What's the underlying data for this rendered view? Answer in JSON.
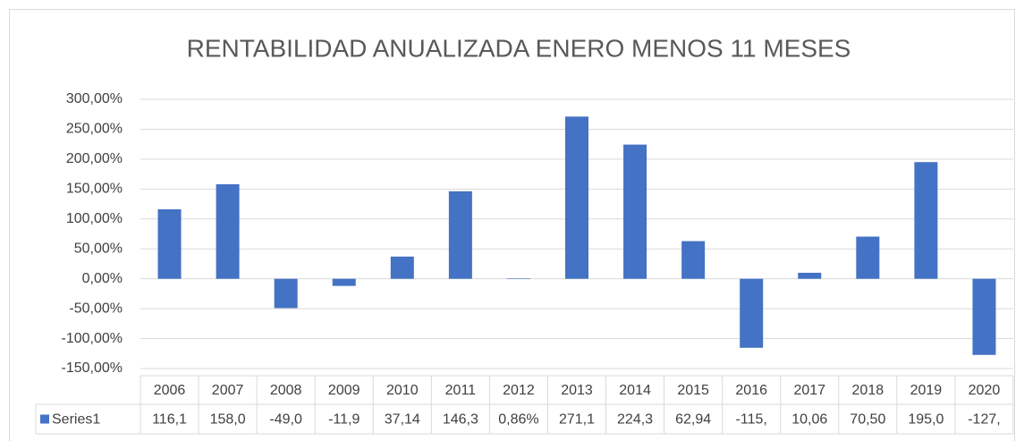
{
  "chart_data": {
    "type": "bar",
    "title": "RENTABILIDAD ANUALIZADA ENERO MENOS 11 MESES",
    "categories": [
      "2006",
      "2007",
      "2008",
      "2009",
      "2010",
      "2011",
      "2012",
      "2013",
      "2014",
      "2015",
      "2016",
      "2017",
      "2018",
      "2019",
      "2020"
    ],
    "series": [
      {
        "name": "Series1",
        "color": "#4472c4",
        "values": [
          116.1,
          158.0,
          -49.0,
          -11.9,
          37.14,
          146.3,
          0.86,
          271.1,
          224.3,
          62.94,
          -115.3,
          10.06,
          70.5,
          195.0,
          -127.2
        ],
        "value_labels": [
          "116,1",
          "158,0",
          "-49,0",
          "-11,9",
          "37,14",
          "146,3",
          "0,86%",
          "271,1",
          "224,3",
          "62,94",
          "-115,",
          "10,06",
          "70,50",
          "195,0",
          "-127,"
        ]
      }
    ],
    "ylim": [
      -150,
      300
    ],
    "yticks": [
      {
        "value": -150,
        "label": "-150,00%"
      },
      {
        "value": -100,
        "label": "-100,00%"
      },
      {
        "value": -50,
        "label": "-50,00%"
      },
      {
        "value": 0,
        "label": "0,00%"
      },
      {
        "value": 50,
        "label": "50,00%"
      },
      {
        "value": 100,
        "label": "100,00%"
      },
      {
        "value": 150,
        "label": "150,00%"
      },
      {
        "value": 200,
        "label": "200,00%"
      },
      {
        "value": 250,
        "label": "250,00%"
      },
      {
        "value": 300,
        "label": "300,00%"
      }
    ],
    "grid": true
  }
}
